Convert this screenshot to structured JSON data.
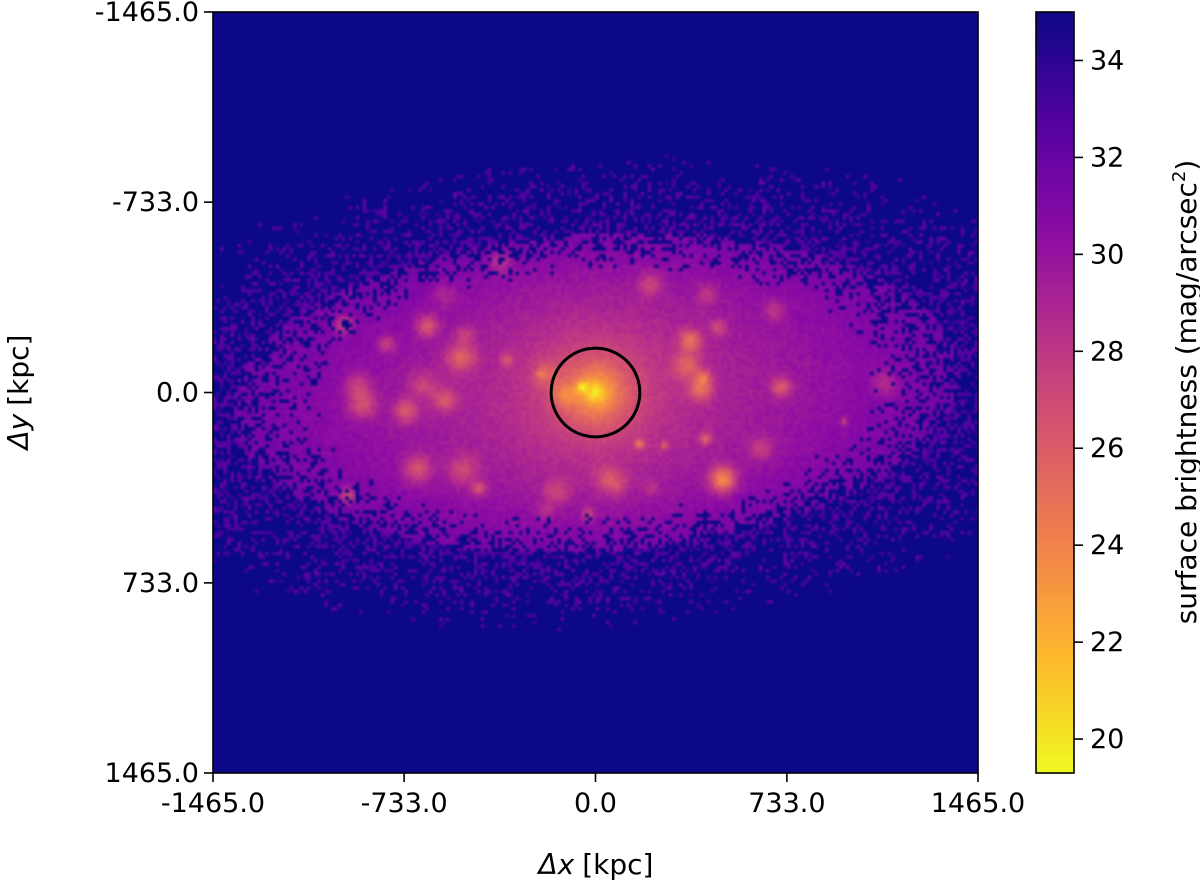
{
  "chart_data": {
    "type": "heatmap",
    "title": "",
    "xlabel": {
      "symbol": "Δx",
      "unit": "[kpc]"
    },
    "ylabel": {
      "symbol": "Δy",
      "unit": "[kpc]"
    },
    "xlim": [
      -1465.0,
      1465.0
    ],
    "ylim": [
      -1465.0,
      1465.0
    ],
    "y_inverted": true,
    "xticks": [
      -1465.0,
      -733.0,
      0.0,
      733.0,
      1465.0
    ],
    "xtick_labels": [
      "-1465.0",
      "-733.0",
      "0.0",
      "733.0",
      "1465.0"
    ],
    "yticks": [
      -1465.0,
      -733.0,
      0.0,
      733.0,
      1465.0
    ],
    "ytick_labels": [
      "-1465.0",
      "-733.0",
      "0.0",
      "733.0",
      "1465.0"
    ],
    "grid": false,
    "colormap": "plasma",
    "colormap_reversed": true,
    "colorbar": {
      "label_main": "surface brightness (mag/arcsec",
      "label_sup": "2",
      "label_end": ")",
      "range": [
        19.3,
        35.0
      ],
      "ticks": [
        20,
        22,
        24,
        26,
        28,
        30,
        32,
        34
      ],
      "tick_labels": [
        "20",
        "22",
        "24",
        "26",
        "28",
        "30",
        "32",
        "34"
      ]
    },
    "background_value": 35.0,
    "central_peak_value": 19.5,
    "annotation_circle": {
      "center": [
        0.0,
        0.0
      ],
      "radius": 170.0,
      "color": "#000000"
    }
  }
}
